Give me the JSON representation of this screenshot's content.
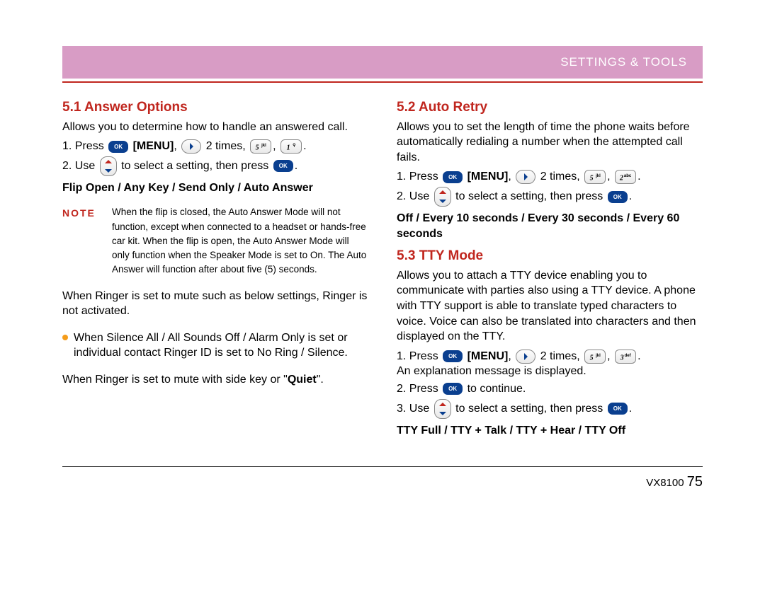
{
  "header": {
    "title": "SETTINGS & TOOLS"
  },
  "colors": {
    "accent_red": "#c0261e",
    "header_bg": "#d89cc5",
    "bullet": "#f59c1a",
    "ok_blue": "#0a3f8f"
  },
  "left": {
    "s1_title": "5.1 Answer Options",
    "s1_desc": "Allows you to determine how to handle an answered call.",
    "s1_step1a": "1.  Press",
    "s1_menu": "[MENU]",
    "s1_step1b": "2 times,",
    "key_5": "5 ",
    "key_5_sup": "jkl",
    "key_1": "1 ",
    "s1_step2a": "2.  Use",
    "s1_step2b": "to select a setting, then press",
    "s1_options": "Flip Open / Any Key / Send Only / Auto Answer",
    "note_label": "NOTE",
    "note_text": "When the flip is closed, the Auto Answer Mode will not function, except when connected to a headset or hands-free car kit. When the flip is open, the Auto Answer Mode will only function when the Speaker Mode is set to On. The Auto Answer will function after about five (5) seconds.",
    "ringer1": "When Ringer is set to mute such as below settings, Ringer is not activated.",
    "bullet1": "When Silence All / All Sounds Off / Alarm Only is set or individual contact Ringer ID is set to No Ring / Silence.",
    "ringer2a": "When Ringer is set to mute with side key or \"",
    "ringer2_bold": "Quiet",
    "ringer2b": "\"."
  },
  "right": {
    "s2_title": "5.2 Auto Retry",
    "s2_desc": "Allows you to set the length of time the phone waits before automatically redialing a number when the attempted call fails.",
    "s2_step1a": "1.  Press",
    "menu": "[MENU]",
    "s2_step1b": "2 times,",
    "key_2": "2",
    "key_2_sup": "abc",
    "s2_step2a": "2.  Use",
    "s2_step2b": "to select a setting, then press",
    "s2_options": "Off / Every 10 seconds / Every 30 seconds / Every 60 seconds",
    "s3_title": "5.3 TTY Mode",
    "s3_desc": "Allows you to attach a TTY device enabling you to communicate with parties also using a TTY device. A phone with TTY support is able to translate typed characters to voice. Voice can also be translated into characters and then displayed on the TTY.",
    "s3_step1a": "1.  Press",
    "s3_step1b": "2 times,",
    "key_3": "3",
    "key_3_sup": "def",
    "s3_step1c": "An explanation message is displayed.",
    "s3_step2a": "2.  Press",
    "s3_step2b": "to continue.",
    "s3_step3a": "3.  Use",
    "s3_step3b": "to select a setting, then press",
    "s3_options": "TTY Full / TTY + Talk / TTY + Hear / TTY Off"
  },
  "footer": {
    "model": "VX8100",
    "page": "75"
  },
  "keys": {
    "ok": "OK"
  }
}
